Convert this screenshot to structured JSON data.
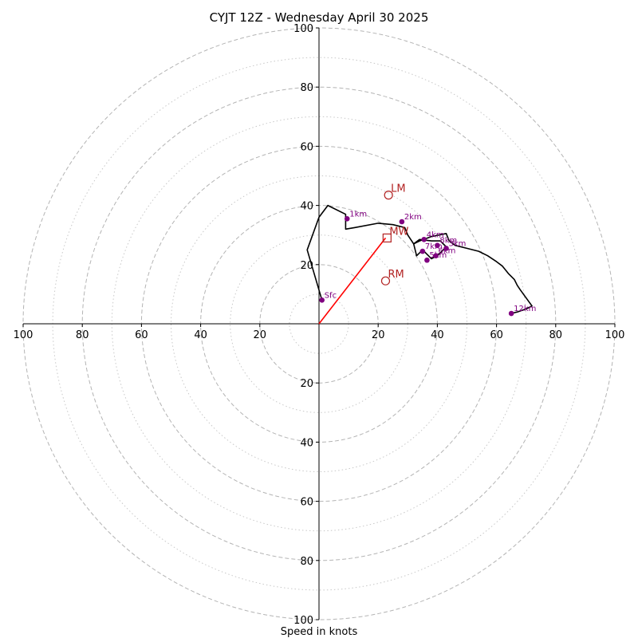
{
  "chart_data": {
    "type": "hodograph",
    "title": "CYJT 12Z - Wednesday April 30 2025",
    "xlabel": "Speed in knots",
    "units": "knots",
    "range": [
      -100,
      100
    ],
    "ring_major": [
      20,
      40,
      60,
      80,
      100
    ],
    "ring_minor": [
      10,
      30,
      50,
      70,
      90
    ],
    "tick_labels_x": [
      "100",
      "80",
      "60",
      "40",
      "20",
      "20",
      "40",
      "60",
      "80",
      "100"
    ],
    "tick_labels_y": [
      "100",
      "80",
      "60",
      "40",
      "20",
      "20",
      "40",
      "60",
      "80",
      "100"
    ],
    "grid": true,
    "trace_color": "#000000",
    "marker_color": "#800080",
    "motion_color": "#b22222",
    "shear_color": "#ff0000",
    "trace": [
      [
        1,
        8
      ],
      [
        -4,
        25
      ],
      [
        0,
        36
      ],
      [
        3,
        40
      ],
      [
        9,
        37
      ],
      [
        9,
        35
      ],
      [
        9,
        32
      ],
      [
        12,
        32.5
      ],
      [
        20,
        34
      ],
      [
        25,
        33.5
      ],
      [
        29,
        32.5
      ],
      [
        30,
        30
      ],
      [
        32,
        27
      ],
      [
        34,
        28
      ],
      [
        38,
        29.5
      ],
      [
        43,
        30.5
      ],
      [
        44,
        28
      ],
      [
        46,
        26.5
      ],
      [
        50,
        25.5
      ],
      [
        54,
        24.5
      ],
      [
        57,
        23
      ],
      [
        60,
        21
      ],
      [
        62,
        19.5
      ],
      [
        64,
        17
      ],
      [
        66,
        15
      ],
      [
        67,
        13
      ],
      [
        68,
        11.5
      ],
      [
        72,
        6
      ],
      [
        70,
        5
      ],
      [
        67,
        4
      ],
      [
        65,
        3.5
      ]
    ],
    "trace_loop": [
      [
        32,
        27
      ],
      [
        33,
        23
      ],
      [
        35,
        25
      ],
      [
        37,
        23
      ],
      [
        38,
        22
      ],
      [
        40,
        23
      ],
      [
        42,
        25
      ],
      [
        43,
        26
      ],
      [
        41,
        28
      ],
      [
        38,
        28
      ],
      [
        34,
        28.5
      ],
      [
        32,
        27
      ]
    ],
    "height_points": [
      {
        "label": "Sfc",
        "x": 1,
        "y": 8
      },
      {
        "label": "1km",
        "x": 9.5,
        "y": 35.5
      },
      {
        "label": "2km",
        "x": 28,
        "y": 34.5
      },
      {
        "label": "3km",
        "x": 43,
        "y": 25.5
      },
      {
        "label": "4km",
        "x": 35.5,
        "y": 28.5
      },
      {
        "label": "5km",
        "x": 36.5,
        "y": 21.5
      },
      {
        "label": "6km",
        "x": 39.5,
        "y": 23
      },
      {
        "label": "7km",
        "x": 35,
        "y": 24.5
      },
      {
        "label": "8km",
        "x": 40,
        "y": 26.5
      },
      {
        "label": "12km",
        "x": 65,
        "y": 3.5
      }
    ],
    "storm_motion": [
      {
        "label": "LM",
        "x": 23.5,
        "y": 43.5,
        "marker": "circle"
      },
      {
        "label": "MW",
        "x": 23,
        "y": 29,
        "marker": "square"
      },
      {
        "label": "RM",
        "x": 22.5,
        "y": 14.5,
        "marker": "circle"
      }
    ],
    "shear_vector": {
      "from": [
        0,
        0
      ],
      "to": [
        22.5,
        29
      ]
    }
  }
}
